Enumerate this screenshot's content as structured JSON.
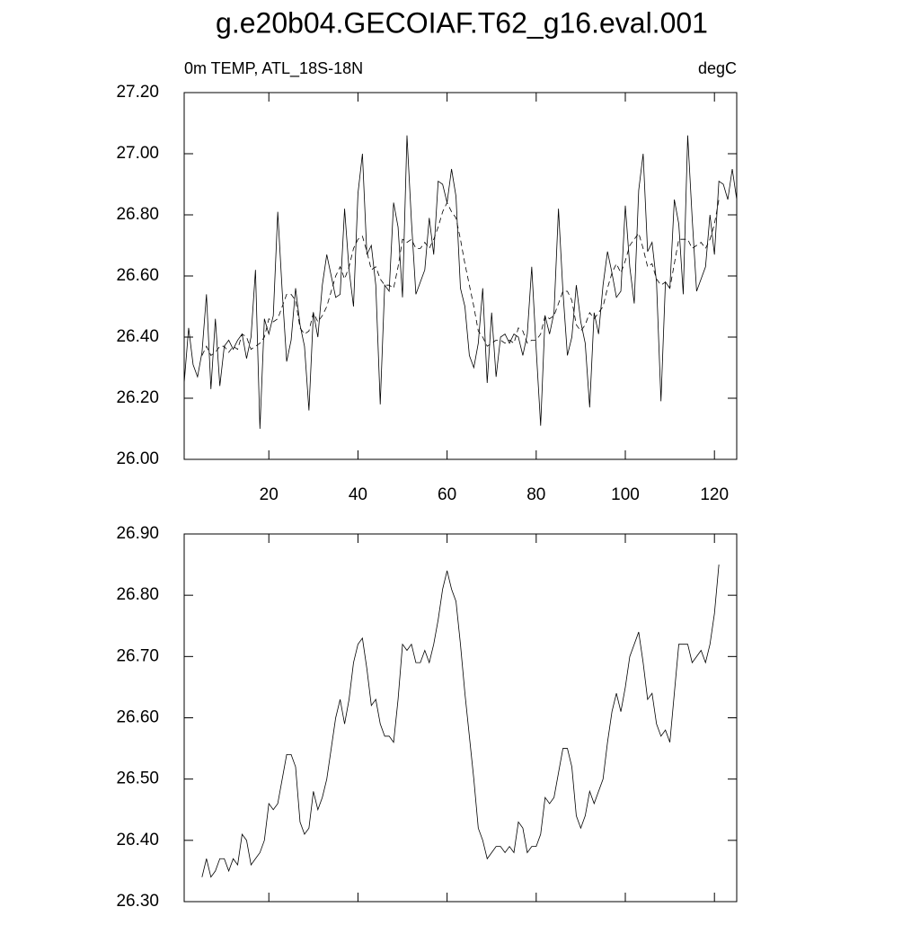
{
  "chart_data": [
    {
      "type": "line",
      "title": "g.e20b04.GECOIAF.T62_g16.eval.001",
      "left_subtitle": "0m TEMP, ATL_18S-18N",
      "right_subtitle": "degC",
      "xlim": [
        1,
        125
      ],
      "xticks": [
        20,
        40,
        60,
        80,
        100,
        120
      ],
      "ylim": [
        26.0,
        27.2
      ],
      "yticks": [
        {
          "value": 26.0,
          "label": "26.00"
        },
        {
          "value": 26.2,
          "label": "26.20"
        },
        {
          "value": 26.4,
          "label": "26.40"
        },
        {
          "value": 26.6,
          "label": "26.60"
        },
        {
          "value": 26.8,
          "label": "26.80"
        },
        {
          "value": 27.0,
          "label": "27.00"
        },
        {
          "value": 27.2,
          "label": "27.20"
        }
      ],
      "series": [
        {
          "color": "#000000",
          "dash": "solid",
          "x": [
            1,
            2,
            3,
            4,
            5,
            6,
            7,
            8,
            9,
            10,
            11,
            12,
            13,
            14,
            15,
            16,
            17,
            18,
            19,
            20,
            21,
            22,
            23,
            24,
            25,
            26,
            27,
            28,
            29,
            30,
            31,
            32,
            33,
            34,
            35,
            36,
            37,
            38,
            39,
            40,
            41,
            42,
            43,
            44,
            45,
            46,
            47,
            48,
            49,
            50,
            51,
            52,
            53,
            54,
            55,
            56,
            57,
            58,
            59,
            60,
            61,
            62,
            63,
            64,
            65,
            66,
            67,
            68,
            69,
            70,
            71,
            72,
            73,
            74,
            75,
            76,
            77,
            78,
            79,
            80,
            81,
            82,
            83,
            84,
            85,
            86,
            87,
            88,
            89,
            90,
            91,
            92,
            93,
            94,
            95,
            96,
            97,
            98,
            99,
            100,
            101,
            102,
            103,
            104,
            105,
            106,
            107,
            108,
            109,
            110,
            111,
            112,
            113,
            114,
            115,
            116,
            117,
            118,
            119,
            120,
            121,
            122,
            123,
            124,
            125
          ],
          "values": [
            26.25,
            26.43,
            26.31,
            26.27,
            26.35,
            26.54,
            26.23,
            26.46,
            26.24,
            26.37,
            26.39,
            26.36,
            26.39,
            26.41,
            26.33,
            26.4,
            26.62,
            26.1,
            26.46,
            26.41,
            26.47,
            26.81,
            26.55,
            26.32,
            26.39,
            26.56,
            26.44,
            26.37,
            26.16,
            26.48,
            26.4,
            26.57,
            26.67,
            26.6,
            26.53,
            26.54,
            26.82,
            26.62,
            26.5,
            26.87,
            27.0,
            26.67,
            26.7,
            26.57,
            26.18,
            26.57,
            26.55,
            26.84,
            26.76,
            26.53,
            27.06,
            26.78,
            26.54,
            26.58,
            26.62,
            26.79,
            26.67,
            26.91,
            26.9,
            26.84,
            26.95,
            26.86,
            26.56,
            26.5,
            26.34,
            26.3,
            26.38,
            26.56,
            26.25,
            26.48,
            26.27,
            26.4,
            26.41,
            26.38,
            26.41,
            26.4,
            26.34,
            26.41,
            26.63,
            26.36,
            26.11,
            26.47,
            26.41,
            26.48,
            26.82,
            26.55,
            26.34,
            26.4,
            26.57,
            26.45,
            26.38,
            26.17,
            26.48,
            26.41,
            26.57,
            26.68,
            26.61,
            26.53,
            26.55,
            26.83,
            26.63,
            26.51,
            26.88,
            27.0,
            26.68,
            26.71,
            26.58,
            26.19,
            26.58,
            26.56,
            26.85,
            26.77,
            26.54,
            27.06,
            26.79,
            26.55,
            26.59,
            26.63,
            26.8,
            26.67,
            26.91,
            26.9,
            26.85,
            26.95,
            26.85
          ]
        },
        {
          "color": "#000000",
          "dash": "dashed",
          "x": [
            5,
            6,
            7,
            8,
            9,
            10,
            11,
            12,
            13,
            14,
            15,
            16,
            17,
            18,
            19,
            20,
            21,
            22,
            23,
            24,
            25,
            26,
            27,
            28,
            29,
            30,
            31,
            32,
            33,
            34,
            35,
            36,
            37,
            38,
            39,
            40,
            41,
            42,
            43,
            44,
            45,
            46,
            47,
            48,
            49,
            50,
            51,
            52,
            53,
            54,
            55,
            56,
            57,
            58,
            59,
            60,
            61,
            62,
            63,
            64,
            65,
            66,
            67,
            68,
            69,
            70,
            71,
            72,
            73,
            74,
            75,
            76,
            77,
            78,
            79,
            80,
            81,
            82,
            83,
            84,
            85,
            86,
            87,
            88,
            89,
            90,
            91,
            92,
            93,
            94,
            95,
            96,
            97,
            98,
            99,
            100,
            101,
            102,
            103,
            104,
            105,
            106,
            107,
            108,
            109,
            110,
            111,
            112,
            113,
            114,
            115,
            116,
            117,
            118,
            119,
            120,
            121
          ],
          "values": [
            26.34,
            26.37,
            26.34,
            26.35,
            26.37,
            26.37,
            26.35,
            26.37,
            26.36,
            26.41,
            26.4,
            26.36,
            26.37,
            26.38,
            26.4,
            26.46,
            26.45,
            26.46,
            26.5,
            26.54,
            26.54,
            26.52,
            26.43,
            26.41,
            26.42,
            26.48,
            26.45,
            26.47,
            26.5,
            26.55,
            26.6,
            26.63,
            26.59,
            26.63,
            26.69,
            26.72,
            26.73,
            26.68,
            26.62,
            26.63,
            26.59,
            26.57,
            26.57,
            26.56,
            26.63,
            26.72,
            26.71,
            26.72,
            26.69,
            26.69,
            26.71,
            26.69,
            26.72,
            26.76,
            26.81,
            26.84,
            26.81,
            26.79,
            26.72,
            26.64,
            26.57,
            26.5,
            26.42,
            26.4,
            26.37,
            26.38,
            26.39,
            26.39,
            26.38,
            26.39,
            26.38,
            26.43,
            26.42,
            26.38,
            26.39,
            26.39,
            26.41,
            26.47,
            26.46,
            26.47,
            26.51,
            26.55,
            26.55,
            26.52,
            26.44,
            26.42,
            26.44,
            26.48,
            26.46,
            26.48,
            26.5,
            26.56,
            26.61,
            26.64,
            26.61,
            26.65,
            26.7,
            26.72,
            26.74,
            26.69,
            26.63,
            26.64,
            26.59,
            26.57,
            26.58,
            26.56,
            26.64,
            26.72,
            26.72,
            26.72,
            26.69,
            26.7,
            26.71,
            26.69,
            26.72,
            26.77,
            26.85
          ]
        }
      ]
    },
    {
      "type": "line",
      "xlim": [
        1,
        125
      ],
      "xticks": [
        20,
        40,
        60,
        80,
        100,
        120
      ],
      "ylim": [
        26.3,
        26.9
      ],
      "yticks": [
        {
          "value": 26.3,
          "label": "26.30"
        },
        {
          "value": 26.4,
          "label": "26.40"
        },
        {
          "value": 26.5,
          "label": "26.50"
        },
        {
          "value": 26.6,
          "label": "26.60"
        },
        {
          "value": 26.7,
          "label": "26.70"
        },
        {
          "value": 26.8,
          "label": "26.80"
        },
        {
          "value": 26.9,
          "label": "26.90"
        }
      ],
      "series": [
        {
          "color": "#000000",
          "dash": "solid",
          "x": [
            5,
            6,
            7,
            8,
            9,
            10,
            11,
            12,
            13,
            14,
            15,
            16,
            17,
            18,
            19,
            20,
            21,
            22,
            23,
            24,
            25,
            26,
            27,
            28,
            29,
            30,
            31,
            32,
            33,
            34,
            35,
            36,
            37,
            38,
            39,
            40,
            41,
            42,
            43,
            44,
            45,
            46,
            47,
            48,
            49,
            50,
            51,
            52,
            53,
            54,
            55,
            56,
            57,
            58,
            59,
            60,
            61,
            62,
            63,
            64,
            65,
            66,
            67,
            68,
            69,
            70,
            71,
            72,
            73,
            74,
            75,
            76,
            77,
            78,
            79,
            80,
            81,
            82,
            83,
            84,
            85,
            86,
            87,
            88,
            89,
            90,
            91,
            92,
            93,
            94,
            95,
            96,
            97,
            98,
            99,
            100,
            101,
            102,
            103,
            104,
            105,
            106,
            107,
            108,
            109,
            110,
            111,
            112,
            113,
            114,
            115,
            116,
            117,
            118,
            119,
            120,
            121
          ],
          "values": [
            26.34,
            26.37,
            26.34,
            26.35,
            26.37,
            26.37,
            26.35,
            26.37,
            26.36,
            26.41,
            26.4,
            26.36,
            26.37,
            26.38,
            26.4,
            26.46,
            26.45,
            26.46,
            26.5,
            26.54,
            26.54,
            26.52,
            26.43,
            26.41,
            26.42,
            26.48,
            26.45,
            26.47,
            26.5,
            26.55,
            26.6,
            26.63,
            26.59,
            26.63,
            26.69,
            26.72,
            26.73,
            26.68,
            26.62,
            26.63,
            26.59,
            26.57,
            26.57,
            26.56,
            26.63,
            26.72,
            26.71,
            26.72,
            26.69,
            26.69,
            26.71,
            26.69,
            26.72,
            26.76,
            26.81,
            26.84,
            26.81,
            26.79,
            26.72,
            26.64,
            26.57,
            26.5,
            26.42,
            26.4,
            26.37,
            26.38,
            26.39,
            26.39,
            26.38,
            26.39,
            26.38,
            26.43,
            26.42,
            26.38,
            26.39,
            26.39,
            26.41,
            26.47,
            26.46,
            26.47,
            26.51,
            26.55,
            26.55,
            26.52,
            26.44,
            26.42,
            26.44,
            26.48,
            26.46,
            26.48,
            26.5,
            26.56,
            26.61,
            26.64,
            26.61,
            26.65,
            26.7,
            26.72,
            26.74,
            26.69,
            26.63,
            26.64,
            26.59,
            26.57,
            26.58,
            26.56,
            26.64,
            26.72,
            26.72,
            26.72,
            26.69,
            26.7,
            26.71,
            26.69,
            26.72,
            26.77,
            26.85
          ]
        }
      ]
    }
  ]
}
